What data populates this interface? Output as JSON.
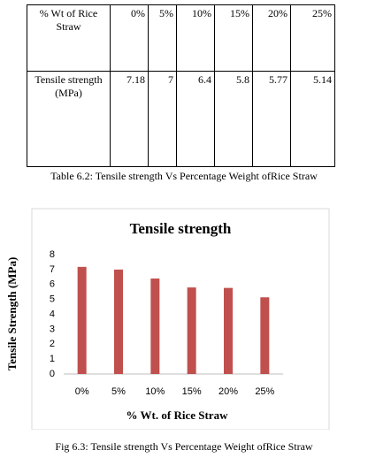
{
  "table": {
    "rows": [
      [
        "% Wt of Rice Straw",
        "0%",
        "5%",
        "10%",
        "15%",
        "20%",
        "25%"
      ],
      [
        "Tensile strength (MPa)",
        7.18,
        7,
        6.4,
        5.8,
        5.77,
        5.14
      ]
    ]
  },
  "table_caption": "Table 6.2: Tensile strength Vs Percentage Weight ofRice Straw",
  "chart_data": {
    "type": "bar",
    "title": "Tensile strength",
    "x_label": "% Wt. of Rice Straw",
    "y_label": "Tensile Strength (MPa)",
    "categories": [
      "0%",
      "5%",
      "10%",
      "15%",
      "20%",
      "25%"
    ],
    "values": [
      7.18,
      7,
      6.4,
      5.8,
      5.77,
      5.14
    ],
    "color": "#c0504d",
    "ylim": [
      0,
      8
    ],
    "yticks": [
      0,
      1,
      2,
      3,
      4,
      5,
      6,
      7,
      8
    ],
    "grid": false
  },
  "figure_caption": "Fig 6.3: Tensile strength Vs Percentage Weight ofRice Straw"
}
